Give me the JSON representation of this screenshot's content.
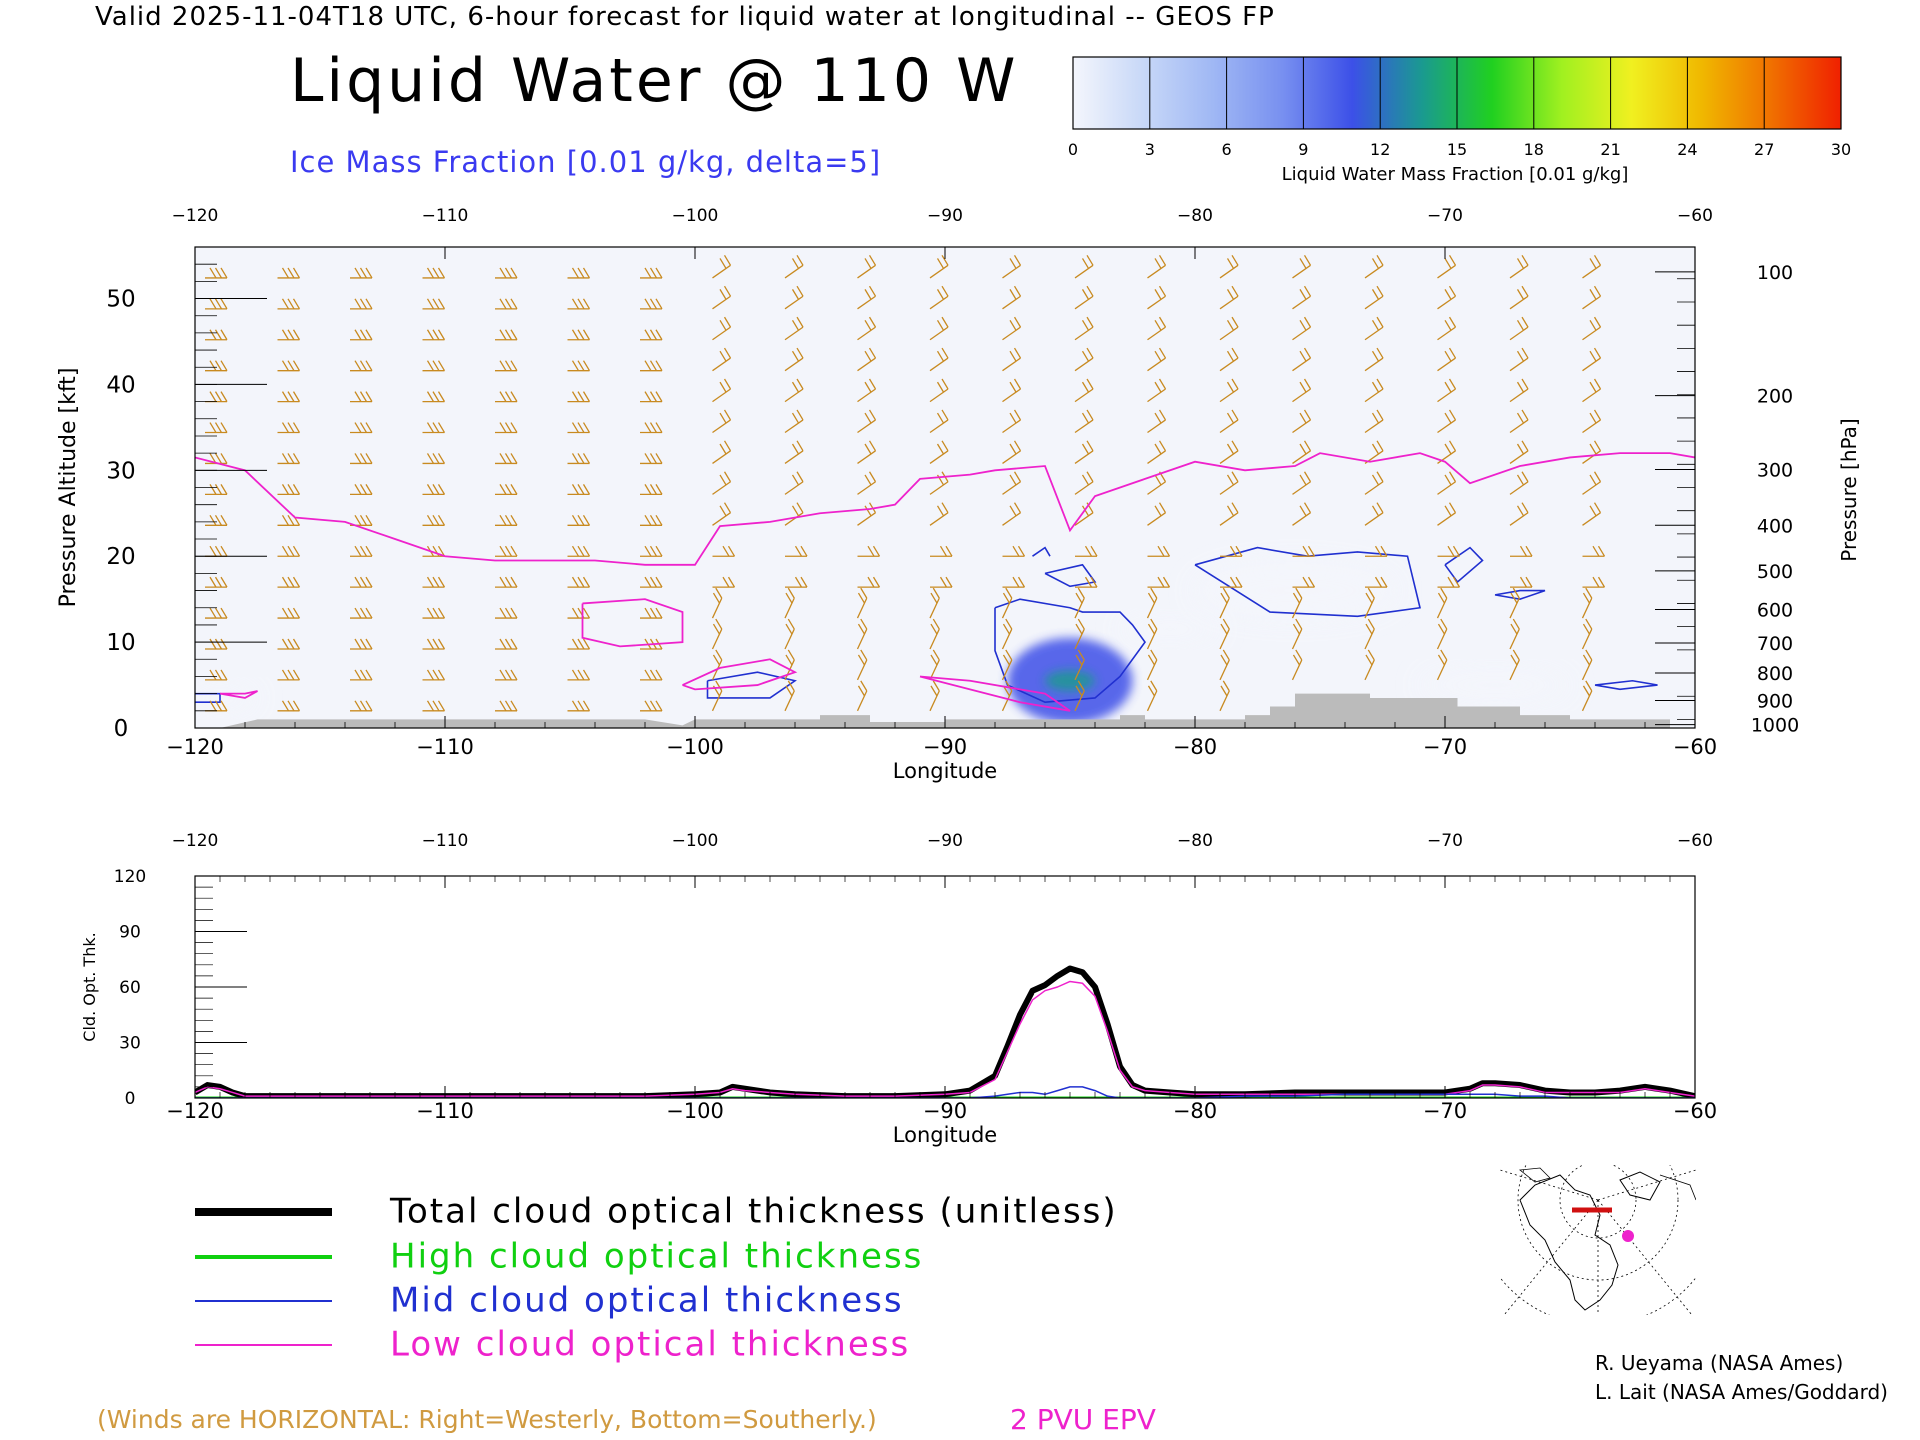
{
  "header": {
    "valid_line": "Valid 2025-11-04T18 UTC, 6-hour forecast for liquid water at longitudinal -- GEOS FP",
    "title": "Liquid Water @ 110 W",
    "subtitle": "Ice Mass Fraction [0.01 g/kg, delta=5]"
  },
  "colorbar": {
    "label": "Liquid Water Mass Fraction [0.01 g/kg]",
    "ticks": [
      "0",
      "3",
      "6",
      "9",
      "12",
      "15",
      "18",
      "21",
      "24",
      "27",
      "30"
    ],
    "colors": [
      "#f4f6fc",
      "#c8d8f8",
      "#a0b8f4",
      "#7890f0",
      "#3c50e8",
      "#1a9a90",
      "#20d020",
      "#a0f020",
      "#f0f020",
      "#f0b800",
      "#f07000",
      "#f02000"
    ]
  },
  "chart_data": [
    {
      "type": "heatmap",
      "title": "Liquid Water @ 110 W",
      "xlabel": "Longitude",
      "ylabel": "Pressure Altitude [kft]",
      "ylabel_right": "Pressure [hPa]",
      "xlim": [
        -120,
        -60
      ],
      "ylim": [
        0,
        56
      ],
      "x_ticks": [
        -120,
        -110,
        -100,
        -90,
        -80,
        -70,
        -60
      ],
      "x_tick_labels": [
        "−120",
        "−110",
        "−100",
        "−90",
        "−80",
        "−70",
        "−60"
      ],
      "y_ticks": [
        0,
        10,
        20,
        30,
        40,
        50
      ],
      "y_tick_labels": [
        "0",
        "10",
        "20",
        "30",
        "40",
        "50"
      ],
      "pressure_ticks": [
        {
          "label": "100",
          "kft": 53.1
        },
        {
          "label": "200",
          "kft": 38.7
        },
        {
          "label": "300",
          "kft": 30.1
        },
        {
          "label": "400",
          "kft": 23.6
        },
        {
          "label": "500",
          "kft": 18.3
        },
        {
          "label": "600",
          "kft": 13.8
        },
        {
          "label": "700",
          "kft": 9.9
        },
        {
          "label": "800",
          "kft": 6.4
        },
        {
          "label": "900",
          "kft": 3.2
        },
        {
          "label": "1000",
          "kft": 0.4
        }
      ],
      "blobs": [
        {
          "lon": -85,
          "kft": 5.5,
          "rx": 2.5,
          "ry": 5,
          "value": 12
        },
        {
          "lon": -85,
          "kft": 5.5,
          "rx": 1.0,
          "ry": 1.2,
          "value": 15
        },
        {
          "lon": -76,
          "kft": 16,
          "rx": 4,
          "ry": 3,
          "value": 2
        },
        {
          "lon": -81,
          "kft": 11.5,
          "rx": 2,
          "ry": 1.2,
          "value": 2
        },
        {
          "lon": -68,
          "kft": 5,
          "rx": 3,
          "ry": 1.5,
          "value": 2
        },
        {
          "lon": -119,
          "kft": 3.5,
          "rx": 1.5,
          "ry": 1.2,
          "value": 2
        }
      ],
      "epv_2pvu": {
        "name": "2 PVU EPV",
        "color": "#ee22cc",
        "tropopause": [
          [
            -120,
            31.5
          ],
          [
            -118,
            30
          ],
          [
            -116,
            24.5
          ],
          [
            -114,
            24
          ],
          [
            -112,
            22
          ],
          [
            -110,
            20
          ],
          [
            -108,
            19.5
          ],
          [
            -106,
            19.5
          ],
          [
            -104,
            19.5
          ],
          [
            -102,
            19
          ],
          [
            -100,
            19
          ],
          [
            -99,
            23.5
          ],
          [
            -97,
            24
          ],
          [
            -95,
            25
          ],
          [
            -93,
            25.5
          ],
          [
            -92,
            26
          ],
          [
            -91,
            29
          ],
          [
            -89,
            29.5
          ],
          [
            -88,
            30
          ],
          [
            -86,
            30.5
          ],
          [
            -85,
            23
          ],
          [
            -84,
            27
          ],
          [
            -82,
            29
          ],
          [
            -80,
            31
          ],
          [
            -78,
            30
          ],
          [
            -76,
            30.5
          ],
          [
            -75,
            32
          ],
          [
            -73,
            31
          ],
          [
            -71,
            32
          ],
          [
            -70,
            31
          ],
          [
            -69,
            28.5
          ],
          [
            -67,
            30.5
          ],
          [
            -65,
            31.5
          ],
          [
            -63,
            32
          ],
          [
            -61,
            32
          ],
          [
            -60,
            31.5
          ]
        ],
        "loops": [
          [
            [
              -104.5,
              14.5
            ],
            [
              -102,
              15
            ],
            [
              -100.5,
              13.5
            ],
            [
              -100.5,
              10
            ],
            [
              -103,
              9.5
            ],
            [
              -104.5,
              10.5
            ],
            [
              -104.5,
              14.5
            ]
          ],
          [
            [
              -100.5,
              5
            ],
            [
              -99,
              7
            ],
            [
              -97,
              8
            ],
            [
              -96,
              6.5
            ],
            [
              -97.5,
              5
            ],
            [
              -100,
              4.5
            ],
            [
              -100.5,
              5
            ]
          ],
          [
            [
              -91,
              6
            ],
            [
              -89,
              5.5
            ],
            [
              -87,
              4.5
            ],
            [
              -86,
              4
            ],
            [
              -85,
              2
            ],
            [
              -87,
              3
            ],
            [
              -89,
              4.5
            ],
            [
              -91,
              6
            ]
          ],
          [
            [
              -119,
              4
            ],
            [
              -118,
              4
            ],
            [
              -117.5,
              4.3
            ],
            [
              -118,
              3.5
            ],
            [
              -119,
              4
            ]
          ]
        ]
      },
      "ice_contours": {
        "color": "#2030d0",
        "loops": [
          [
            [
              -88,
              14
            ],
            [
              -87,
              15
            ],
            [
              -85,
              14
            ],
            [
              -84.5,
              13.5
            ],
            [
              -83,
              13.5
            ],
            [
              -82.5,
              12
            ],
            [
              -82,
              10
            ],
            [
              -83,
              6
            ],
            [
              -84,
              3.5
            ],
            [
              -86,
              3
            ],
            [
              -87.5,
              5
            ],
            [
              -88,
              9
            ],
            [
              -88,
              14
            ]
          ],
          [
            [
              -86,
              18
            ],
            [
              -84.5,
              19
            ],
            [
              -84,
              17
            ],
            [
              -85,
              16.5
            ],
            [
              -86,
              18
            ]
          ],
          [
            [
              -80,
              19
            ],
            [
              -77.5,
              21
            ],
            [
              -75.5,
              20
            ],
            [
              -73.5,
              20.5
            ],
            [
              -71.5,
              20
            ],
            [
              -71,
              14
            ],
            [
              -73.5,
              13
            ],
            [
              -77,
              13.5
            ],
            [
              -80,
              19
            ]
          ],
          [
            [
              -70,
              19
            ],
            [
              -69,
              21
            ],
            [
              -68.5,
              19.5
            ],
            [
              -69.5,
              17
            ],
            [
              -70,
              19
            ]
          ],
          [
            [
              -99.5,
              5.5
            ],
            [
              -97.5,
              6.5
            ],
            [
              -96,
              5.5
            ],
            [
              -97,
              3.5
            ],
            [
              -99.5,
              3.5
            ],
            [
              -99.5,
              5.5
            ]
          ],
          [
            [
              -120,
              4
            ],
            [
              -119,
              4
            ],
            [
              -119,
              3
            ],
            [
              -120,
              3
            ]
          ],
          [
            [
              -86.5,
              20
            ],
            [
              -86,
              21
            ],
            [
              -85.8,
              20
            ]
          ],
          [
            [
              -64,
              5
            ],
            [
              -62.5,
              5.5
            ],
            [
              -61.5,
              5
            ],
            [
              -63,
              4.5
            ],
            [
              -64,
              5
            ]
          ],
          [
            [
              -68,
              15.5
            ],
            [
              -67,
              16
            ],
            [
              -66,
              16
            ],
            [
              -67,
              15
            ],
            [
              -68,
              15.5
            ]
          ]
        ]
      },
      "terrain": {
        "color": "#bbbbbb",
        "steps": [
          [
            -119,
            0
          ],
          [
            -117.5,
            1
          ],
          [
            -102,
            1
          ],
          [
            -100.5,
            0.3
          ],
          [
            -100,
            1
          ],
          [
            -95,
            1
          ],
          [
            -95,
            1.5
          ],
          [
            -93,
            1.5
          ],
          [
            -93,
            0.7
          ],
          [
            -90,
            0.7
          ],
          [
            -90,
            1
          ],
          [
            -83,
            1
          ],
          [
            -83,
            1.5
          ],
          [
            -82,
            1.5
          ],
          [
            -82,
            1
          ],
          [
            -78,
            1
          ],
          [
            -78,
            1.5
          ],
          [
            -77,
            1.5
          ],
          [
            -77,
            2.5
          ],
          [
            -76,
            2.5
          ],
          [
            -76,
            4
          ],
          [
            -73,
            4
          ],
          [
            -73,
            3.5
          ],
          [
            -69.5,
            3.5
          ],
          [
            -69.5,
            2.5
          ],
          [
            -67,
            2.5
          ],
          [
            -67,
            1.5
          ],
          [
            -65,
            1.5
          ],
          [
            -65,
            1
          ],
          [
            -61,
            1
          ],
          [
            -61,
            0
          ]
        ]
      },
      "winds_note": "(Winds are HORIZONTAL: Right=Westerly, Bottom=Southerly.)",
      "epv_note": "2 PVU EPV"
    },
    {
      "type": "line",
      "xlabel": "Longitude",
      "ylabel": "Cld. Opt. Thk.",
      "xlim": [
        -120,
        -60
      ],
      "ylim": [
        0,
        120
      ],
      "x_ticks": [
        -120,
        -110,
        -100,
        -90,
        -80,
        -70,
        -60
      ],
      "x_tick_labels": [
        "−120",
        "−110",
        "−100",
        "−90",
        "−80",
        "−70",
        "−60"
      ],
      "y_ticks": [
        0,
        30,
        60,
        90,
        120
      ],
      "y_tick_labels": [
        "0",
        "30",
        "60",
        "90",
        "120"
      ],
      "x": [
        -120,
        -119.5,
        -119,
        -118.5,
        -118,
        -117,
        -115,
        -112,
        -110,
        -106,
        -102,
        -100,
        -99,
        -98.5,
        -98,
        -97,
        -96,
        -94,
        -92,
        -90,
        -89,
        -88,
        -87.5,
        -87,
        -86.5,
        -86,
        -85.5,
        -85,
        -84.5,
        -84,
        -83.5,
        -83,
        -82.5,
        -82,
        -81,
        -80,
        -78,
        -76,
        -74,
        -72,
        -70,
        -69,
        -68.5,
        -68,
        -67,
        -66,
        -65,
        -64,
        -63,
        -62,
        -61,
        -60
      ],
      "series": [
        {
          "name": "Total cloud optical thickness (unitless)",
          "color": "#000000",
          "width": 6,
          "values": [
            3,
            7,
            6,
            3,
            1,
            1,
            1,
            1,
            1,
            1,
            1,
            2,
            3,
            6,
            5,
            3,
            2,
            1,
            1,
            2,
            4,
            12,
            28,
            45,
            58,
            61,
            66,
            70,
            68,
            60,
            40,
            17,
            7,
            4,
            3,
            2,
            2,
            3,
            3,
            3,
            3,
            5,
            8,
            8,
            7,
            4,
            3,
            3,
            4,
            6,
            4,
            1
          ]
        },
        {
          "name": "High cloud optical thickness",
          "color": "#10d010",
          "width": 3,
          "values": [
            0,
            0,
            0,
            0,
            0,
            0,
            0,
            0,
            0,
            0,
            0,
            0,
            0,
            0,
            0,
            0,
            0,
            0,
            0,
            0,
            0,
            0,
            0,
            0,
            0,
            0,
            0,
            0,
            0,
            0,
            0,
            0,
            0,
            0,
            0,
            0,
            0,
            0,
            0,
            0,
            0,
            0,
            0,
            0,
            0,
            0,
            0,
            0,
            0,
            0,
            0,
            0
          ]
        },
        {
          "name": "Mid cloud optical thickness",
          "color": "#2030d0",
          "width": 1.5,
          "values": [
            0,
            0,
            0,
            0,
            0,
            0,
            0,
            0,
            0,
            0,
            0,
            0,
            0,
            0,
            0,
            0,
            0,
            0,
            0,
            0,
            0,
            1,
            2,
            3,
            3,
            2,
            4,
            6,
            6,
            4,
            1,
            0,
            0,
            0,
            0,
            0,
            1,
            1,
            2,
            2,
            2,
            2,
            2,
            2,
            1,
            1,
            0,
            0,
            0,
            0,
            0,
            0
          ]
        },
        {
          "name": "Low cloud optical thickness",
          "color": "#ee22cc",
          "width": 1.5,
          "values": [
            3,
            6,
            5,
            3,
            1,
            1,
            1,
            1,
            1,
            1,
            1,
            2,
            3,
            5,
            4,
            3,
            2,
            1,
            1,
            2,
            3,
            10,
            25,
            40,
            53,
            58,
            60,
            63,
            62,
            55,
            36,
            15,
            6,
            4,
            3,
            2,
            2,
            2,
            2,
            2,
            2,
            4,
            7,
            7,
            6,
            3,
            3,
            3,
            3,
            5,
            3,
            1
          ]
        }
      ]
    }
  ],
  "legend": {
    "total": "Total cloud optical thickness (unitless)",
    "high": "High cloud optical thickness",
    "mid": "Mid cloud optical thickness",
    "low": "Low cloud optical thickness"
  },
  "credits": {
    "line1": "R. Ueyama (NASA Ames)",
    "line2": "L. Lait (NASA Ames/Goddard)"
  },
  "colors": {
    "wind_barb": "#c88a20",
    "legend_total": "#000000",
    "legend_high": "#10d010",
    "legend_mid": "#2030d0",
    "legend_low": "#ee22cc"
  }
}
